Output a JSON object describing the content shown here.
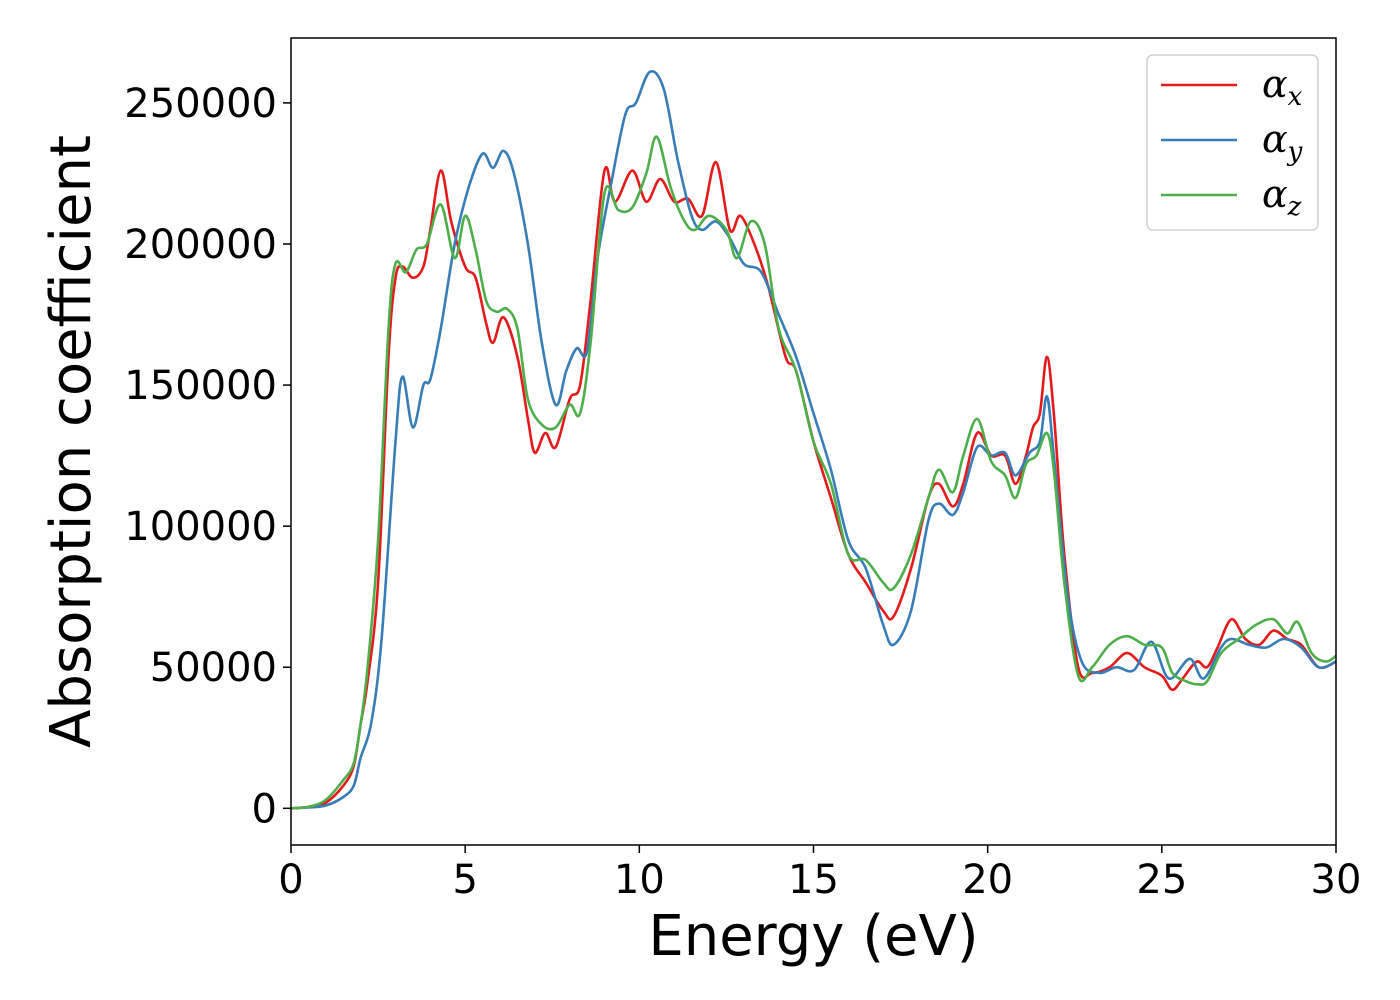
{
  "chart_data": {
    "type": "line",
    "title": "",
    "xlabel": "Energy (eV)",
    "ylabel": "Absorption coefficient",
    "xlim": [
      0,
      30
    ],
    "ylim": [
      -13000,
      273000
    ],
    "xticks": [
      0,
      5,
      10,
      15,
      20,
      25,
      30
    ],
    "yticks": [
      0,
      50000,
      100000,
      150000,
      200000,
      250000
    ],
    "grid": false,
    "legend_position": "top-right",
    "series": [
      {
        "name": "α",
        "subscript": "x",
        "color": "#e41a1c",
        "points": [
          [
            0,
            0
          ],
          [
            0.5,
            500
          ],
          [
            1,
            2000
          ],
          [
            1.5,
            8000
          ],
          [
            1.8,
            15000
          ],
          [
            2,
            30000
          ],
          [
            2.2,
            45000
          ],
          [
            2.5,
            80000
          ],
          [
            2.8,
            160000
          ],
          [
            3,
            188000
          ],
          [
            3.2,
            192000
          ],
          [
            3.5,
            188000
          ],
          [
            3.8,
            192000
          ],
          [
            4,
            205000
          ],
          [
            4.3,
            226000
          ],
          [
            4.6,
            208000
          ],
          [
            5,
            192000
          ],
          [
            5.3,
            188000
          ],
          [
            5.6,
            172000
          ],
          [
            5.8,
            165000
          ],
          [
            6.1,
            174000
          ],
          [
            6.5,
            160000
          ],
          [
            6.8,
            138000
          ],
          [
            7,
            126000
          ],
          [
            7.3,
            133000
          ],
          [
            7.6,
            128000
          ],
          [
            8,
            145000
          ],
          [
            8.3,
            150000
          ],
          [
            8.6,
            180000
          ],
          [
            9,
            226000
          ],
          [
            9.3,
            215000
          ],
          [
            9.8,
            226000
          ],
          [
            10.2,
            215000
          ],
          [
            10.6,
            223000
          ],
          [
            11,
            215000
          ],
          [
            11.4,
            216000
          ],
          [
            11.8,
            210000
          ],
          [
            12.2,
            229000
          ],
          [
            12.6,
            205000
          ],
          [
            12.9,
            210000
          ],
          [
            13.3,
            200000
          ],
          [
            13.7,
            185000
          ],
          [
            14.2,
            160000
          ],
          [
            14.5,
            155000
          ],
          [
            15,
            130000
          ],
          [
            15.5,
            110000
          ],
          [
            16,
            90000
          ],
          [
            16.5,
            80000
          ],
          [
            17,
            70000
          ],
          [
            17.3,
            68000
          ],
          [
            17.8,
            85000
          ],
          [
            18.3,
            110000
          ],
          [
            18.6,
            115000
          ],
          [
            19,
            107000
          ],
          [
            19.3,
            115000
          ],
          [
            19.7,
            133000
          ],
          [
            20.1,
            125000
          ],
          [
            20.5,
            125000
          ],
          [
            20.8,
            115000
          ],
          [
            21.1,
            125000
          ],
          [
            21.3,
            135000
          ],
          [
            21.5,
            140000
          ],
          [
            21.7,
            160000
          ],
          [
            21.9,
            140000
          ],
          [
            22.2,
            90000
          ],
          [
            22.6,
            50000
          ],
          [
            23,
            48000
          ],
          [
            23.5,
            50000
          ],
          [
            24,
            55000
          ],
          [
            24.5,
            50000
          ],
          [
            25,
            47000
          ],
          [
            25.3,
            42000
          ],
          [
            25.6,
            46000
          ],
          [
            26,
            52000
          ],
          [
            26.3,
            50000
          ],
          [
            26.6,
            57000
          ],
          [
            27,
            67000
          ],
          [
            27.4,
            60000
          ],
          [
            27.8,
            58000
          ],
          [
            28.2,
            63000
          ],
          [
            28.6,
            60000
          ],
          [
            29,
            58000
          ],
          [
            29.5,
            50000
          ],
          [
            30,
            52000
          ]
        ]
      },
      {
        "name": "α",
        "subscript": "y",
        "color": "#377eb8",
        "points": [
          [
            0,
            0
          ],
          [
            0.5,
            300
          ],
          [
            1,
            1000
          ],
          [
            1.5,
            4000
          ],
          [
            1.8,
            8000
          ],
          [
            2,
            18000
          ],
          [
            2.3,
            30000
          ],
          [
            2.6,
            60000
          ],
          [
            3,
            130000
          ],
          [
            3.2,
            153000
          ],
          [
            3.5,
            135000
          ],
          [
            3.8,
            150000
          ],
          [
            4,
            152000
          ],
          [
            4.3,
            170000
          ],
          [
            4.7,
            200000
          ],
          [
            5.1,
            220000
          ],
          [
            5.5,
            232000
          ],
          [
            5.8,
            227000
          ],
          [
            6.1,
            233000
          ],
          [
            6.4,
            225000
          ],
          [
            6.8,
            200000
          ],
          [
            7.2,
            165000
          ],
          [
            7.6,
            143000
          ],
          [
            7.9,
            155000
          ],
          [
            8.2,
            163000
          ],
          [
            8.5,
            162000
          ],
          [
            8.8,
            195000
          ],
          [
            9.2,
            222000
          ],
          [
            9.6,
            246000
          ],
          [
            9.9,
            250000
          ],
          [
            10.3,
            261000
          ],
          [
            10.7,
            255000
          ],
          [
            11.1,
            230000
          ],
          [
            11.5,
            210000
          ],
          [
            11.8,
            205000
          ],
          [
            12.2,
            208000
          ],
          [
            12.6,
            202000
          ],
          [
            13,
            193000
          ],
          [
            13.5,
            190000
          ],
          [
            14,
            175000
          ],
          [
            14.5,
            160000
          ],
          [
            15,
            140000
          ],
          [
            15.5,
            120000
          ],
          [
            16,
            95000
          ],
          [
            16.5,
            85000
          ],
          [
            17,
            65000
          ],
          [
            17.3,
            58000
          ],
          [
            17.8,
            70000
          ],
          [
            18.3,
            102000
          ],
          [
            18.6,
            108000
          ],
          [
            19,
            104000
          ],
          [
            19.3,
            112000
          ],
          [
            19.7,
            128000
          ],
          [
            20.1,
            125000
          ],
          [
            20.5,
            126000
          ],
          [
            20.8,
            118000
          ],
          [
            21.2,
            126000
          ],
          [
            21.5,
            130000
          ],
          [
            21.7,
            146000
          ],
          [
            21.9,
            125000
          ],
          [
            22.3,
            75000
          ],
          [
            22.7,
            52000
          ],
          [
            23.2,
            48000
          ],
          [
            23.7,
            50000
          ],
          [
            24.2,
            49000
          ],
          [
            24.7,
            59000
          ],
          [
            25.2,
            46000
          ],
          [
            25.8,
            53000
          ],
          [
            26.2,
            46000
          ],
          [
            26.7,
            57000
          ],
          [
            27,
            60000
          ],
          [
            27.5,
            58000
          ],
          [
            28,
            57000
          ],
          [
            28.5,
            60000
          ],
          [
            29,
            57000
          ],
          [
            29.5,
            50000
          ],
          [
            30,
            52000
          ]
        ]
      },
      {
        "name": "α",
        "subscript": "z",
        "color": "#4daf4a",
        "points": [
          [
            0,
            0
          ],
          [
            0.5,
            500
          ],
          [
            1,
            3000
          ],
          [
            1.5,
            10000
          ],
          [
            1.8,
            16000
          ],
          [
            2,
            30000
          ],
          [
            2.2,
            50000
          ],
          [
            2.5,
            95000
          ],
          [
            2.8,
            170000
          ],
          [
            3,
            193000
          ],
          [
            3.3,
            190000
          ],
          [
            3.6,
            198000
          ],
          [
            3.9,
            200000
          ],
          [
            4.3,
            214000
          ],
          [
            4.7,
            195000
          ],
          [
            5,
            210000
          ],
          [
            5.3,
            198000
          ],
          [
            5.6,
            180000
          ],
          [
            5.9,
            176000
          ],
          [
            6.2,
            177000
          ],
          [
            6.5,
            170000
          ],
          [
            6.8,
            145000
          ],
          [
            7.2,
            136000
          ],
          [
            7.6,
            135000
          ],
          [
            8,
            143000
          ],
          [
            8.3,
            140000
          ],
          [
            8.6,
            165000
          ],
          [
            9,
            218000
          ],
          [
            9.4,
            212000
          ],
          [
            9.8,
            213000
          ],
          [
            10.2,
            225000
          ],
          [
            10.5,
            238000
          ],
          [
            10.9,
            220000
          ],
          [
            11.3,
            208000
          ],
          [
            11.6,
            205000
          ],
          [
            12,
            210000
          ],
          [
            12.5,
            205000
          ],
          [
            12.8,
            195000
          ],
          [
            13.2,
            208000
          ],
          [
            13.6,
            200000
          ],
          [
            14,
            170000
          ],
          [
            14.5,
            155000
          ],
          [
            15,
            130000
          ],
          [
            15.5,
            115000
          ],
          [
            16,
            90000
          ],
          [
            16.5,
            88000
          ],
          [
            17,
            80000
          ],
          [
            17.3,
            78000
          ],
          [
            17.8,
            90000
          ],
          [
            18.3,
            110000
          ],
          [
            18.6,
            120000
          ],
          [
            19,
            112000
          ],
          [
            19.3,
            125000
          ],
          [
            19.7,
            138000
          ],
          [
            20.1,
            123000
          ],
          [
            20.5,
            118000
          ],
          [
            20.8,
            110000
          ],
          [
            21.1,
            122000
          ],
          [
            21.4,
            125000
          ],
          [
            21.7,
            133000
          ],
          [
            21.9,
            120000
          ],
          [
            22.2,
            80000
          ],
          [
            22.6,
            47000
          ],
          [
            23,
            50000
          ],
          [
            23.5,
            58000
          ],
          [
            24,
            61000
          ],
          [
            24.5,
            58000
          ],
          [
            25,
            57000
          ],
          [
            25.3,
            48000
          ],
          [
            25.7,
            45000
          ],
          [
            26,
            44000
          ],
          [
            26.3,
            45000
          ],
          [
            26.7,
            55000
          ],
          [
            27.2,
            60000
          ],
          [
            27.7,
            65000
          ],
          [
            28.2,
            67000
          ],
          [
            28.6,
            62000
          ],
          [
            28.9,
            66000
          ],
          [
            29.3,
            55000
          ],
          [
            29.7,
            52000
          ],
          [
            30,
            54000
          ]
        ]
      }
    ]
  }
}
